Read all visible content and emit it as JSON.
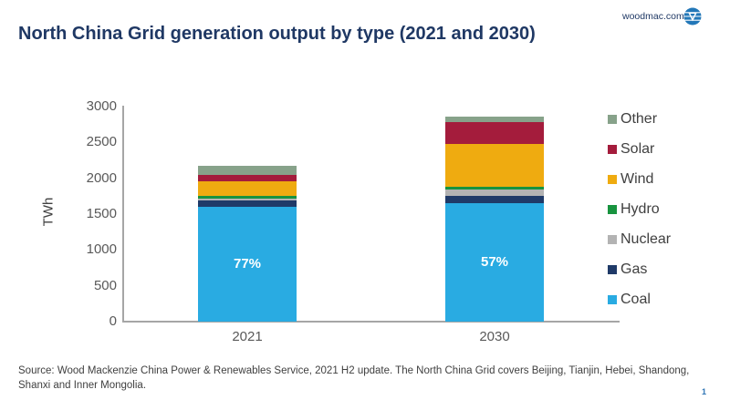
{
  "header": {
    "title": "North China Grid generation output by type (2021 and 2030)",
    "site_link": "woodmac.com",
    "logo_name": "woodmac-logo"
  },
  "chart_data": {
    "type": "bar",
    "stacked": true,
    "ylabel": "TWh",
    "ylim": [
      0,
      3000
    ],
    "yticks": [
      0,
      500,
      1000,
      1500,
      2000,
      2500,
      3000
    ],
    "categories": [
      "2021",
      "2030"
    ],
    "series": [
      {
        "name": "Coal",
        "color": "#29abe2",
        "values": [
          1600,
          1650
        ]
      },
      {
        "name": "Gas",
        "color": "#1f3a68",
        "values": [
          90,
          100
        ]
      },
      {
        "name": "Nuclear",
        "color": "#b3b3b3",
        "values": [
          25,
          90
        ]
      },
      {
        "name": "Hydro",
        "color": "#18933f",
        "values": [
          40,
          40
        ]
      },
      {
        "name": "Wind",
        "color": "#efab10",
        "values": [
          200,
          600
        ]
      },
      {
        "name": "Solar",
        "color": "#a41c3c",
        "values": [
          90,
          300
        ]
      },
      {
        "name": "Other",
        "color": "#87a28a",
        "values": [
          125,
          80
        ]
      }
    ],
    "bar_labels": [
      "77%",
      "57%"
    ],
    "bar_label_series": "Coal",
    "legend_order": [
      "Other",
      "Solar",
      "Wind",
      "Hydro",
      "Nuclear",
      "Gas",
      "Coal"
    ],
    "legend_position": "right",
    "grid": false
  },
  "footer": {
    "source": "Source: Wood Mackenzie China Power & Renewables Service, 2021 H2 update. The North China Grid covers Beijing, Tianjin, Hebei, Shandong, Shanxi and Inner Mongolia.",
    "page_number": "1"
  },
  "colors": {
    "title_navy": "#1f3864",
    "axis_gray": "#a6a6a6",
    "tick_gray": "#595959",
    "text_gray": "#404040",
    "page_blue": "#2e74b5"
  }
}
